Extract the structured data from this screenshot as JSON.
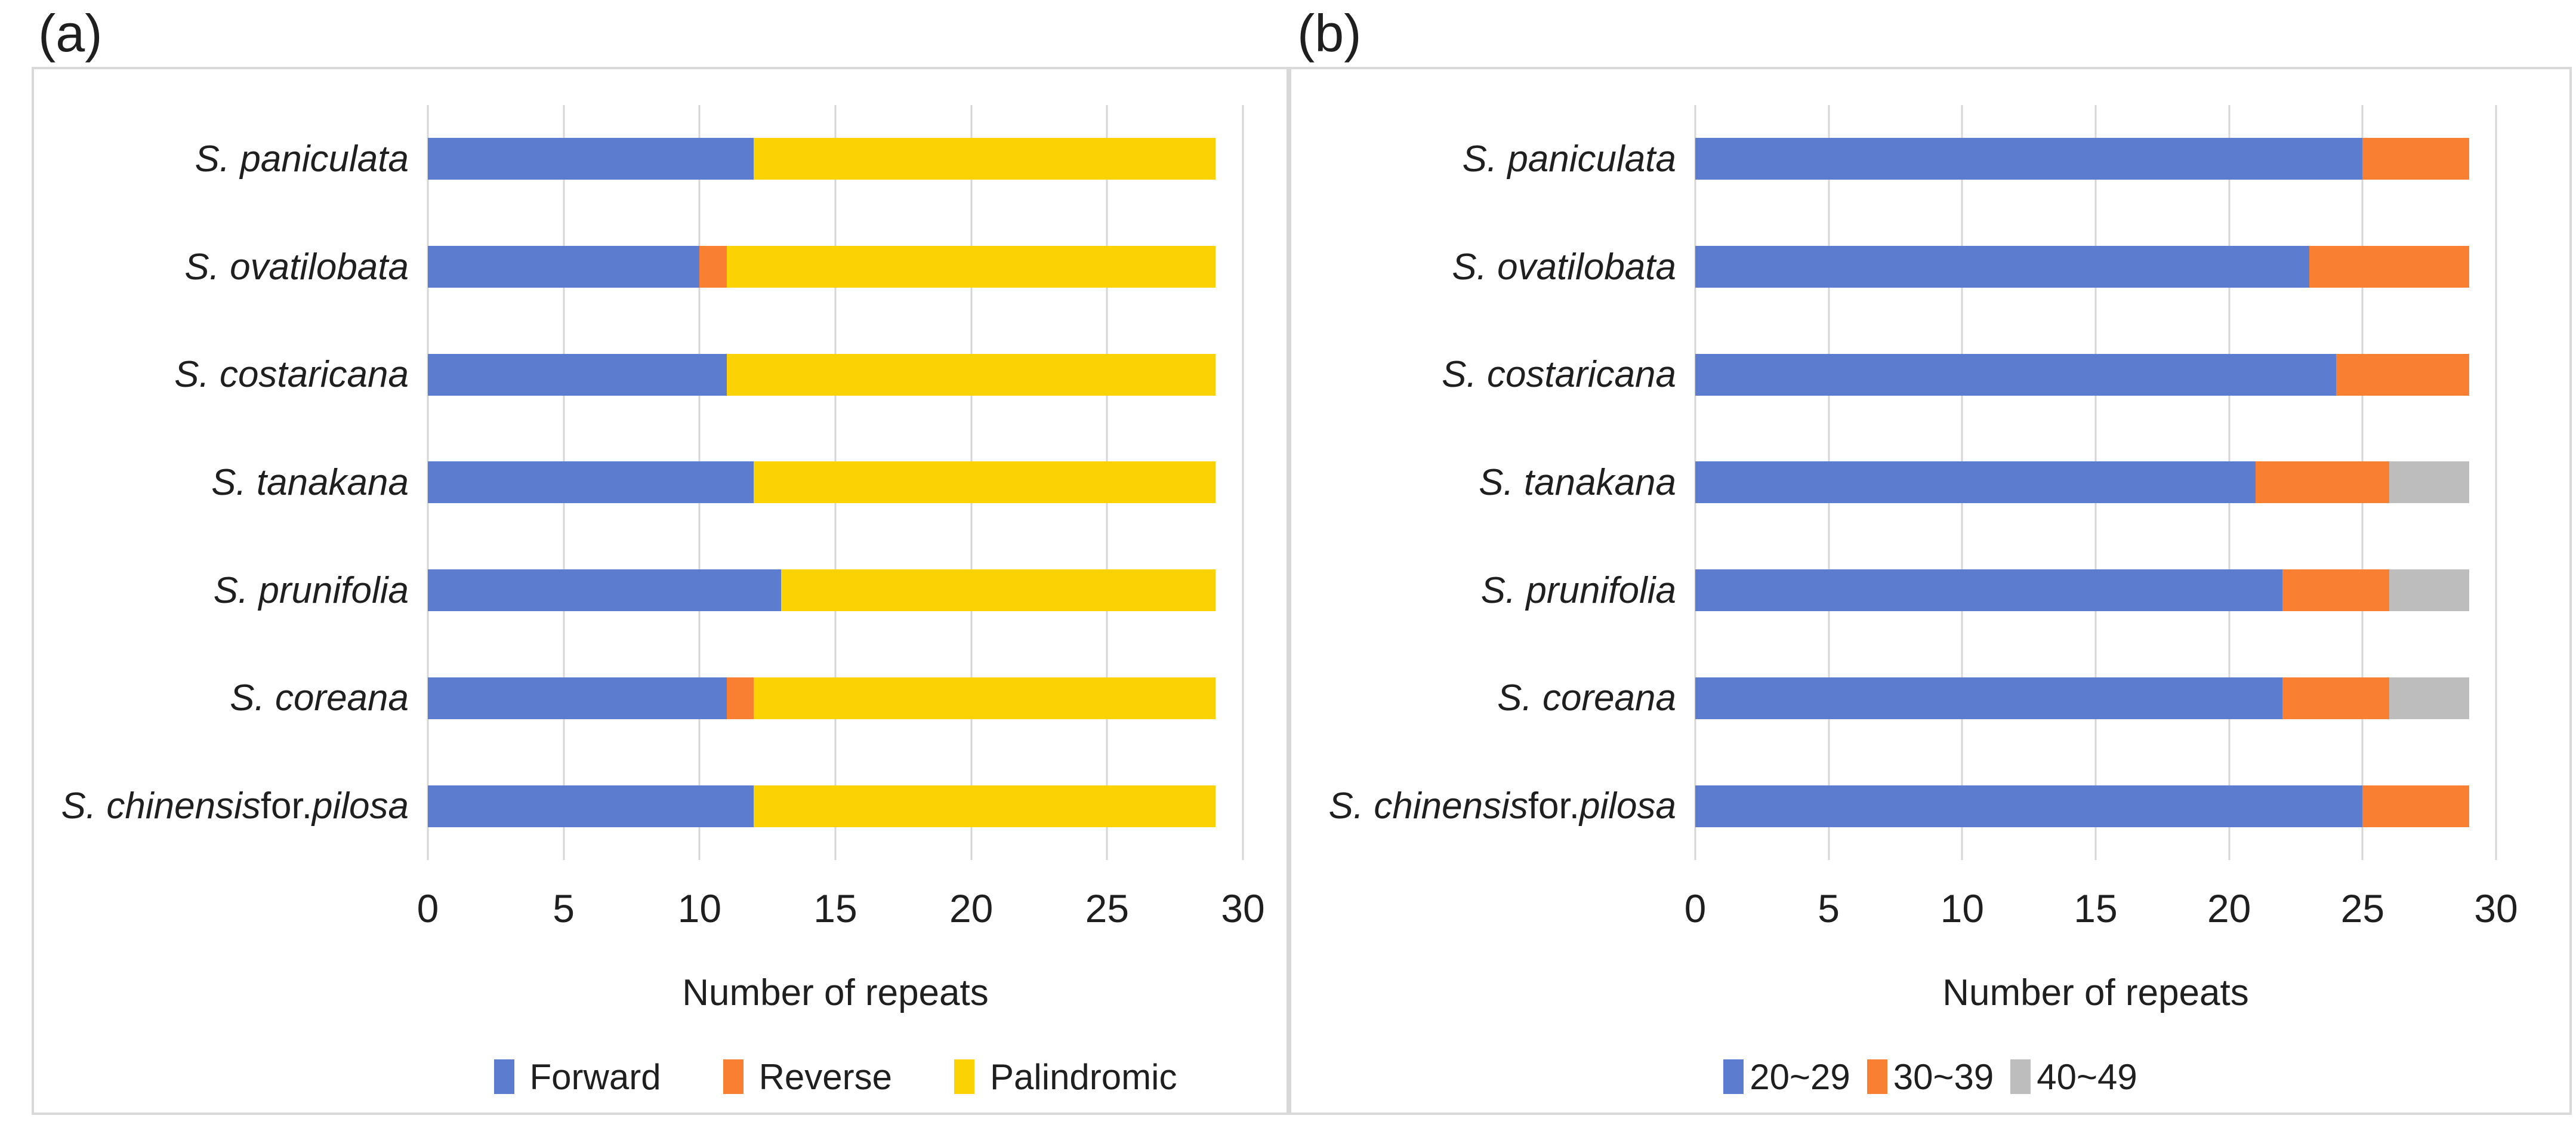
{
  "figure": {
    "background": "#FFFFFF",
    "panel_border_color": "#D9D9D9",
    "gridline_color": "#D6D6D6",
    "text_color": "#1F1F1F"
  },
  "chart_data": [
    {
      "type": "bar",
      "orientation": "horizontal",
      "stacked": true,
      "panel_label": "(a)",
      "title": "",
      "xlabel": "Number of repeats",
      "ylabel": "",
      "xlim": [
        0,
        30
      ],
      "x_ticks": [
        0,
        5,
        10,
        15,
        20,
        25,
        30
      ],
      "grid": true,
      "legend_position": "bottom",
      "categories": [
        "S. paniculata",
        "S. ovatilobata",
        "S. costaricana",
        "S. tanakana",
        "S. prunifolia",
        "S. coreana",
        "S. chinensis for. pilosa"
      ],
      "category_parts": [
        [
          [
            "i",
            "S. paniculata"
          ]
        ],
        [
          [
            "i",
            "S. ovatilobata"
          ]
        ],
        [
          [
            "i",
            "S. costaricana"
          ]
        ],
        [
          [
            "i",
            "S. tanakana"
          ]
        ],
        [
          [
            "i",
            "S. prunifolia"
          ]
        ],
        [
          [
            "i",
            "S. coreana"
          ]
        ],
        [
          [
            "i",
            "S. chinensis"
          ],
          [
            "n",
            " for. "
          ],
          [
            "i",
            "pilosa"
          ]
        ]
      ],
      "series": [
        {
          "name": "Forward",
          "color": "#5B7CCF",
          "values": [
            12,
            10,
            11,
            12,
            13,
            11,
            12
          ]
        },
        {
          "name": "Reverse",
          "color": "#F98033",
          "values": [
            0,
            1,
            0,
            0,
            0,
            1,
            0
          ]
        },
        {
          "name": "Palindromic",
          "color": "#FBD304",
          "values": [
            17,
            18,
            18,
            17,
            16,
            17,
            17
          ]
        }
      ]
    },
    {
      "type": "bar",
      "orientation": "horizontal",
      "stacked": true,
      "panel_label": "(b)",
      "title": "",
      "xlabel": "Number of repeats",
      "ylabel": "",
      "xlim": [
        0,
        30
      ],
      "x_ticks": [
        0,
        5,
        10,
        15,
        20,
        25,
        30
      ],
      "grid": true,
      "legend_position": "bottom",
      "categories": [
        "S. paniculata",
        "S. ovatilobata",
        "S. costaricana",
        "S. tanakana",
        "S. prunifolia",
        "S. coreana",
        "S. chinensis for. pilosa"
      ],
      "category_parts": [
        [
          [
            "i",
            "S. paniculata"
          ]
        ],
        [
          [
            "i",
            "S. ovatilobata"
          ]
        ],
        [
          [
            "i",
            "S. costaricana"
          ]
        ],
        [
          [
            "i",
            "S. tanakana"
          ]
        ],
        [
          [
            "i",
            "S. prunifolia"
          ]
        ],
        [
          [
            "i",
            "S. coreana"
          ]
        ],
        [
          [
            "i",
            "S. chinensis"
          ],
          [
            "n",
            " for. "
          ],
          [
            "i",
            "pilosa"
          ]
        ]
      ],
      "series": [
        {
          "name": "20~29",
          "color": "#5B7CCF",
          "values": [
            25,
            23,
            24,
            21,
            22,
            22,
            25
          ]
        },
        {
          "name": "30~39",
          "color": "#F98033",
          "values": [
            4,
            6,
            5,
            5,
            4,
            4,
            4
          ]
        },
        {
          "name": "40~49",
          "color": "#BDBDBD",
          "values": [
            0,
            0,
            0,
            3,
            3,
            3,
            0
          ]
        }
      ]
    }
  ]
}
